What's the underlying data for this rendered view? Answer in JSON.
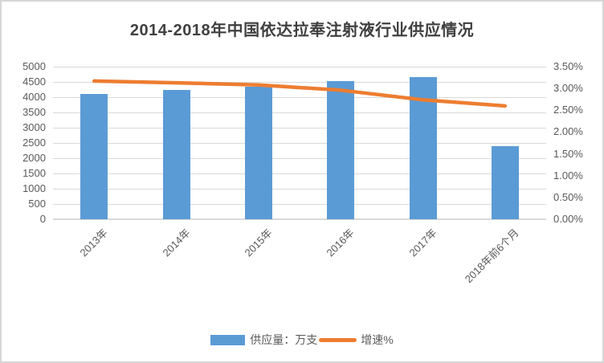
{
  "chart_data": {
    "type": "bar",
    "combo": "bar+line",
    "title": "2014-2018年中国依达拉奉注射液行业供应情况",
    "categories": [
      "2013年",
      "2014年",
      "2015年",
      "2016年",
      "2017年",
      "2018年前6个月"
    ],
    "series": [
      {
        "name": "供应量：万支",
        "type": "bar",
        "axis": "left",
        "color": "#5B9BD5",
        "values": [
          4100,
          4240,
          4330,
          4520,
          4650,
          2400
        ]
      },
      {
        "name": "增速%",
        "type": "line",
        "axis": "right",
        "color": "#ED7D31",
        "values": [
          3.17,
          3.13,
          3.08,
          2.96,
          2.74,
          2.6
        ]
      }
    ],
    "left_axis": {
      "min": 0,
      "max": 5000,
      "step": 500,
      "tick_labels": [
        "5000",
        "4500",
        "4000",
        "3500",
        "3000",
        "2500",
        "2000",
        "1500",
        "1000",
        "500",
        "0"
      ]
    },
    "right_axis": {
      "min": 0,
      "max": 3.5,
      "step": 0.5,
      "tick_labels": [
        "3.50%",
        "3.00%",
        "2.50%",
        "2.00%",
        "1.50%",
        "1.00%",
        "0.50%",
        "0.00%"
      ]
    },
    "grid": true,
    "legend_position": "bottom",
    "colors": {
      "grid": "#D9D9D9",
      "axis_text": "#595959",
      "title_text": "#404040",
      "frame_border": "#D6D6D6"
    }
  }
}
